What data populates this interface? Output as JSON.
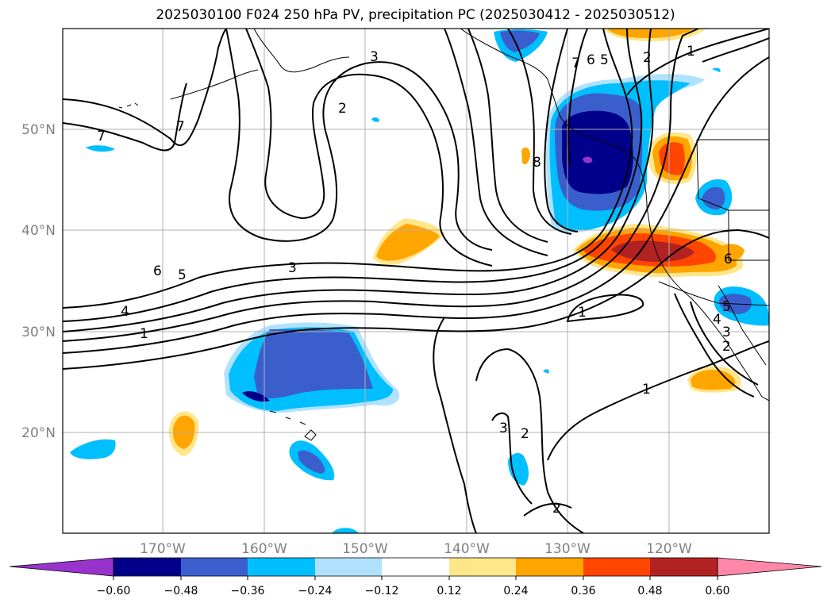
{
  "title": "2025030100 F024 250 hPa PV, precipitation PC (2025030412 - 2025030512)",
  "latitude_labels": [
    "50°N",
    "40°N",
    "30°N",
    "20°N"
  ],
  "longitude_labels": [
    "170°W",
    "160°W",
    "150°W",
    "140°W",
    "130°W",
    "120°W"
  ],
  "colorbar": {
    "tick_labels": [
      "−0.60",
      "−0.48",
      "−0.36",
      "−0.24",
      "−0.12",
      "0.12",
      "0.24",
      "0.36",
      "0.48",
      "0.60"
    ],
    "colors": [
      "#9933cc",
      "#00008b",
      "#3a5fcd",
      "#00bfff",
      "#b0e2ff",
      "#ffffff",
      "#ffe68a",
      "#ffa500",
      "#ff4500",
      "#b22222",
      "#ff88aa"
    ]
  },
  "contour_labels": [
    "7",
    "7",
    "6",
    "5",
    "4",
    "1",
    "3",
    "2",
    "3",
    "8",
    "7",
    "6",
    "5",
    "2",
    "1",
    "1",
    "6",
    "5",
    "4",
    "3",
    "2",
    "1",
    "3",
    "2",
    "2"
  ],
  "colors": {
    "coastline": "#000000",
    "grid": "#b0b0b0"
  }
}
